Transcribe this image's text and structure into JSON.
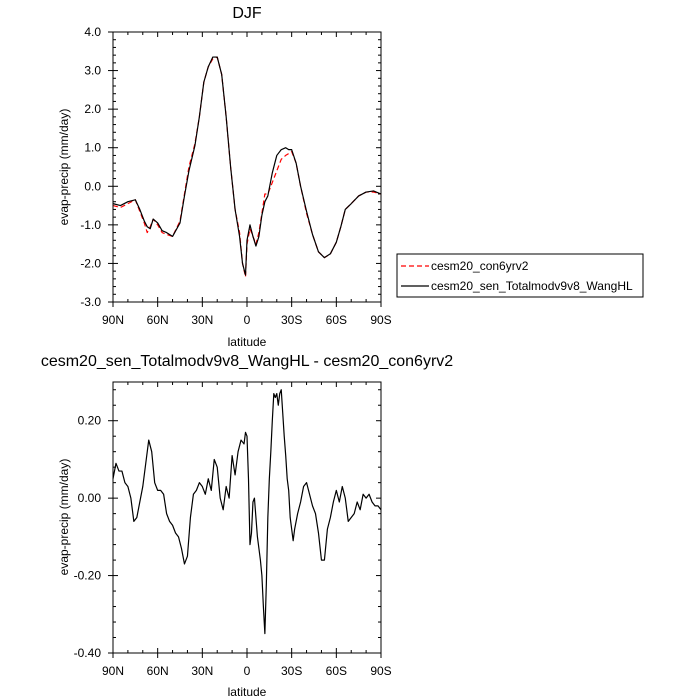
{
  "chart_data": [
    {
      "type": "line",
      "title": "DJF",
      "xlabel": "latitude",
      "ylabel": "evap-precip (mm/day)",
      "xlim": [
        90,
        -90
      ],
      "ylim": [
        -3.0,
        4.0
      ],
      "x_ticks": [
        90,
        60,
        30,
        0,
        -30,
        -60,
        -90
      ],
      "x_tick_labels": [
        "90N",
        "60N",
        "30N",
        "0",
        "30S",
        "60S",
        "90S"
      ],
      "y_ticks": [
        -3,
        -2,
        -1,
        0,
        1,
        2,
        3,
        4
      ],
      "y_tick_labels": [
        "-3.0",
        "-2.0",
        "-1.0",
        "0.0",
        "1.0",
        "2.0",
        "3.0",
        "4.0"
      ],
      "legend_position": "right",
      "series": [
        {
          "name": "cesm20_con6yrv2",
          "color": "#ff0000",
          "dash": "dashed",
          "x": [
            90,
            85,
            80,
            75,
            72,
            69,
            67,
            65,
            63,
            60,
            57,
            54,
            50,
            45,
            42,
            39,
            35,
            32,
            29,
            26,
            23,
            20,
            17,
            14,
            11,
            8,
            5,
            3,
            1,
            0,
            -2,
            -4,
            -6,
            -8,
            -10,
            -12,
            -14,
            -17,
            -20,
            -23,
            -26,
            -28,
            -30,
            -33,
            -36,
            -40,
            -44,
            -48,
            -52,
            -56,
            -60,
            -63,
            -66,
            -70,
            -75,
            -80,
            -85,
            -90
          ],
          "y": [
            -0.5,
            -0.55,
            -0.45,
            -0.35,
            -0.65,
            -0.95,
            -1.2,
            -1.05,
            -0.85,
            -1.0,
            -1.2,
            -1.25,
            -1.3,
            -0.9,
            -0.2,
            0.5,
            1.1,
            1.8,
            2.7,
            3.1,
            3.3,
            3.35,
            2.9,
            1.8,
            0.5,
            -0.6,
            -1.2,
            -2.0,
            -2.35,
            -1.5,
            -1.1,
            -1.3,
            -1.5,
            -1.2,
            -0.7,
            -0.2,
            -0.2,
            0.1,
            0.4,
            0.7,
            0.8,
            0.85,
            0.9,
            0.6,
            0.0,
            -0.7,
            -1.25,
            -1.7,
            -1.85,
            -1.75,
            -1.45,
            -1.05,
            -0.6,
            -0.45,
            -0.25,
            -0.15,
            -0.15,
            -0.2
          ]
        },
        {
          "name": "cesm20_sen_Totalmodv9v8_WangHL",
          "color": "#000000",
          "dash": "solid",
          "x": [
            90,
            85,
            80,
            75,
            72,
            69,
            67,
            65,
            63,
            60,
            57,
            54,
            50,
            45,
            42,
            39,
            35,
            32,
            29,
            26,
            23,
            20,
            17,
            14,
            11,
            8,
            5,
            3,
            1,
            0,
            -2,
            -4,
            -6,
            -8,
            -10,
            -12,
            -14,
            -17,
            -20,
            -23,
            -26,
            -28,
            -30,
            -33,
            -36,
            -40,
            -44,
            -48,
            -52,
            -56,
            -60,
            -63,
            -66,
            -70,
            -75,
            -80,
            -85,
            -90
          ],
          "y": [
            -0.45,
            -0.5,
            -0.4,
            -0.35,
            -0.6,
            -0.9,
            -1.05,
            -1.1,
            -0.85,
            -0.95,
            -1.15,
            -1.2,
            -1.3,
            -0.95,
            -0.25,
            0.4,
            1.05,
            1.8,
            2.7,
            3.1,
            3.35,
            3.35,
            2.9,
            1.8,
            0.5,
            -0.6,
            -1.3,
            -2.0,
            -2.3,
            -1.4,
            -1.0,
            -1.3,
            -1.55,
            -1.3,
            -0.75,
            -0.4,
            -0.25,
            0.35,
            0.8,
            0.95,
            1.0,
            0.95,
            0.95,
            0.6,
            0.0,
            -0.65,
            -1.25,
            -1.7,
            -1.85,
            -1.75,
            -1.45,
            -1.05,
            -0.6,
            -0.45,
            -0.25,
            -0.15,
            -0.12,
            -0.2
          ]
        }
      ]
    },
    {
      "type": "line",
      "title": "cesm20_sen_Totalmodv9v8_WangHL - cesm20_con6yrv2",
      "xlabel": "latitude",
      "ylabel": "evap-precip (mm/day)",
      "xlim": [
        90,
        -90
      ],
      "ylim": [
        -0.4,
        0.3
      ],
      "x_ticks": [
        90,
        60,
        30,
        0,
        -30,
        -60,
        -90
      ],
      "x_tick_labels": [
        "90N",
        "60N",
        "30N",
        "0",
        "30S",
        "60S",
        "90S"
      ],
      "y_ticks": [
        -0.4,
        -0.2,
        0.0,
        0.2
      ],
      "y_tick_labels": [
        "-0.40",
        "-0.20",
        "0.00",
        "0.20"
      ],
      "series": [
        {
          "color": "#000000",
          "dash": "solid",
          "x": [
            90,
            88,
            86,
            84,
            82,
            80,
            78,
            76,
            74,
            72,
            70,
            68,
            66,
            64,
            62,
            60,
            58,
            56,
            54,
            52,
            50,
            48,
            46,
            44,
            42,
            40,
            38,
            36,
            34,
            32,
            30,
            28,
            26,
            24,
            22,
            20,
            18,
            16,
            14,
            12,
            10,
            8,
            6,
            4,
            2,
            1,
            0,
            -1,
            -2,
            -3,
            -4,
            -5,
            -6,
            -7,
            -8,
            -9,
            -10,
            -11,
            -12,
            -13,
            -14,
            -15,
            -16,
            -17,
            -18,
            -19,
            -20,
            -21,
            -22,
            -23,
            -24,
            -25,
            -26,
            -27,
            -28,
            -29,
            -30,
            -31,
            -32,
            -34,
            -36,
            -38,
            -40,
            -42,
            -44,
            -46,
            -48,
            -50,
            -52,
            -54,
            -56,
            -58,
            -60,
            -62,
            -64,
            -66,
            -68,
            -70,
            -72,
            -74,
            -76,
            -78,
            -80,
            -82,
            -84,
            -86,
            -88,
            -90
          ],
          "y": [
            0.05,
            0.09,
            0.07,
            0.07,
            0.04,
            0.03,
            0.0,
            -0.06,
            -0.05,
            -0.01,
            0.03,
            0.09,
            0.15,
            0.12,
            0.04,
            0.02,
            0.02,
            0.01,
            -0.04,
            -0.06,
            -0.07,
            -0.09,
            -0.1,
            -0.13,
            -0.17,
            -0.15,
            -0.05,
            0.01,
            0.02,
            0.04,
            0.03,
            0.01,
            0.05,
            0.02,
            0.1,
            0.08,
            0.0,
            -0.03,
            0.03,
            0.0,
            0.11,
            0.06,
            0.12,
            0.15,
            0.14,
            0.17,
            0.16,
            0.05,
            -0.12,
            -0.09,
            -0.01,
            0.0,
            -0.05,
            -0.1,
            -0.13,
            -0.16,
            -0.2,
            -0.28,
            -0.35,
            -0.22,
            -0.05,
            0.05,
            0.12,
            0.2,
            0.27,
            0.26,
            0.27,
            0.24,
            0.27,
            0.28,
            0.22,
            0.16,
            0.11,
            0.05,
            0.02,
            -0.05,
            -0.08,
            -0.11,
            -0.08,
            -0.04,
            -0.01,
            0.03,
            0.04,
            0.01,
            -0.02,
            -0.04,
            -0.09,
            -0.16,
            -0.16,
            -0.08,
            -0.05,
            -0.01,
            0.02,
            -0.01,
            0.03,
            0.0,
            -0.06,
            -0.05,
            -0.04,
            -0.01,
            -0.03,
            0.01,
            0.0,
            0.01,
            -0.01,
            -0.02,
            -0.02,
            -0.03
          ]
        }
      ]
    }
  ]
}
